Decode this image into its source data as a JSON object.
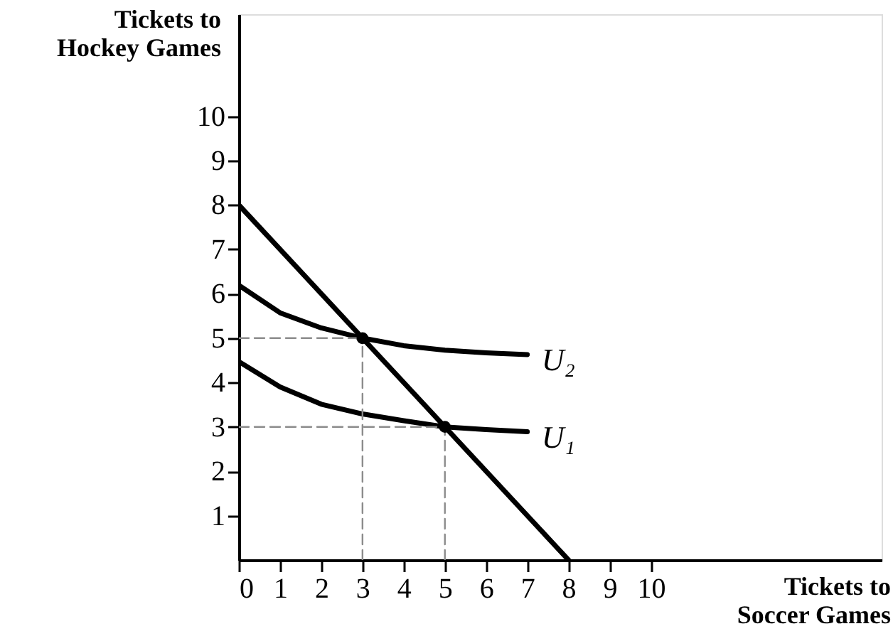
{
  "chart_data": {
    "type": "line",
    "xlabel": "Tickets to\nSoccer Games",
    "ylabel": "Tickets to\nHockey Games",
    "xlim": [
      0,
      15.6
    ],
    "ylim": [
      0,
      12.3
    ],
    "xticks": [
      0,
      1,
      2,
      3,
      4,
      5,
      6,
      7,
      8,
      9,
      10
    ],
    "yticks": [
      1,
      2,
      3,
      4,
      5,
      6,
      7,
      8,
      9,
      10
    ],
    "grid": false,
    "series": [
      {
        "color": "#000000",
        "line_style": "solid",
        "x": [
          0,
          8
        ],
        "values": [
          8,
          0
        ]
      },
      {
        "name": "U₂",
        "color": "#000000",
        "line_style": "solid",
        "x": [
          0,
          1,
          2,
          3,
          4,
          5,
          6,
          7
        ],
        "values": [
          6.19,
          5.57,
          5.23,
          5.0,
          4.83,
          4.73,
          4.67,
          4.63
        ]
      },
      {
        "name": "U₁",
        "color": "#000000",
        "line_style": "solid",
        "x": [
          0,
          1,
          2,
          3,
          4,
          5,
          6,
          7
        ],
        "values": [
          4.47,
          3.9,
          3.51,
          3.29,
          3.14,
          3.0,
          2.94,
          2.89
        ]
      },
      {
        "color": "#8c8c8c",
        "line_style": "dashed",
        "x": [
          0,
          3
        ],
        "values": [
          5,
          5
        ]
      },
      {
        "color": "#8c8c8c",
        "line_style": "dashed",
        "x": [
          3,
          3
        ],
        "values": [
          0,
          5
        ]
      },
      {
        "color": "#8c8c8c",
        "line_style": "dashed",
        "x": [
          0,
          5
        ],
        "values": [
          3,
          3
        ]
      },
      {
        "color": "#8c8c8c",
        "line_style": "dashed",
        "x": [
          5,
          5
        ],
        "values": [
          0,
          3
        ]
      },
      {
        "type": "scatter",
        "marker": "circle",
        "color": "#000000",
        "x": [
          3,
          5
        ],
        "values": [
          5,
          3
        ]
      }
    ]
  }
}
